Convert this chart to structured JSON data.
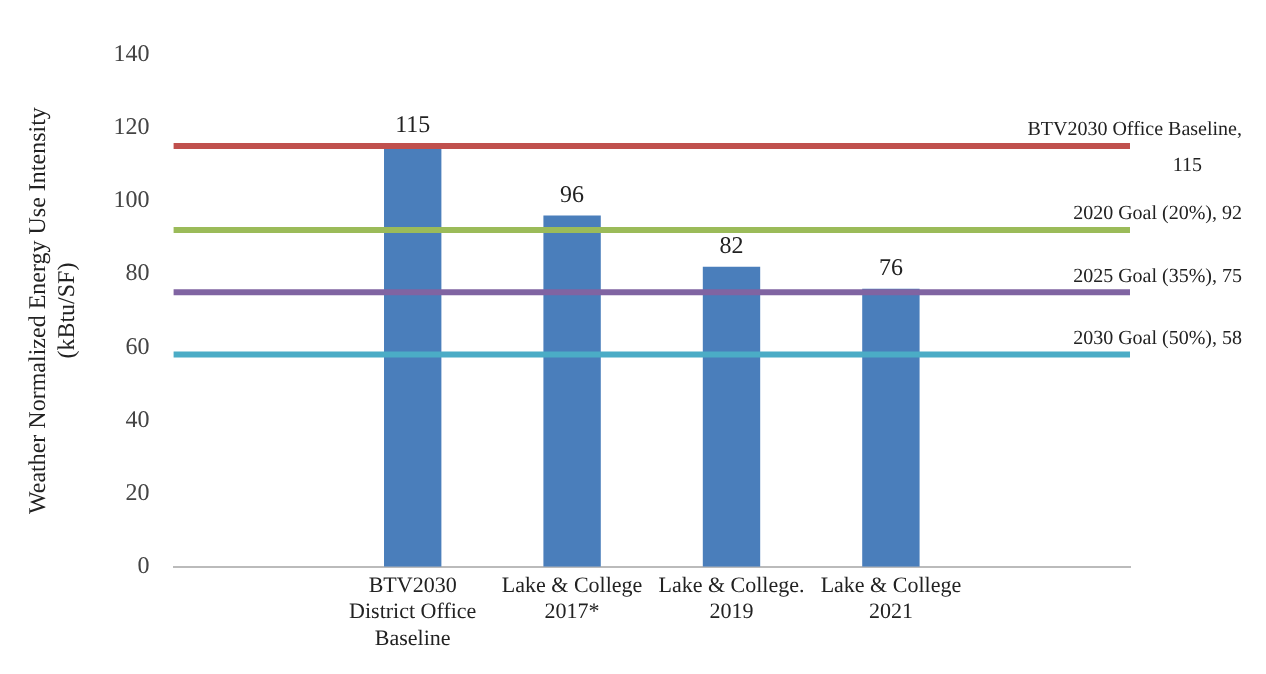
{
  "chart_data": {
    "type": "bar",
    "ylabel": "Weather Normalized Energy Use Intensity\n(kBtu/SF)",
    "categories": [
      null,
      "BTV2030\nDistrict Office\nBaseline",
      "Lake & College\n2017*",
      "Lake & College.\n2019",
      "Lake & College\n2021",
      null
    ],
    "values": [
      null,
      115,
      96,
      82,
      76,
      null
    ],
    "color": "#4a7ebb",
    "data_labels": true,
    "ylim": [
      0,
      140
    ],
    "yticks": [
      0,
      20,
      40,
      60,
      80,
      100,
      120,
      140
    ],
    "grid": false,
    "legend": false,
    "ref_lines": [
      {
        "axis": "y",
        "value": 115,
        "label": "BTV2030 Office Baseline,\n115",
        "color": "#c0504d"
      },
      {
        "axis": "y",
        "value": 92,
        "label": "2020 Goal (20%), 92",
        "color": "#9bbb59"
      },
      {
        "axis": "y",
        "value": 75,
        "label": "2025 Goal (35%), 75",
        "color": "#8064a2"
      },
      {
        "axis": "y",
        "value": 58,
        "label": "2030 Goal (50%), 58",
        "color": "#4bacc6"
      }
    ]
  }
}
